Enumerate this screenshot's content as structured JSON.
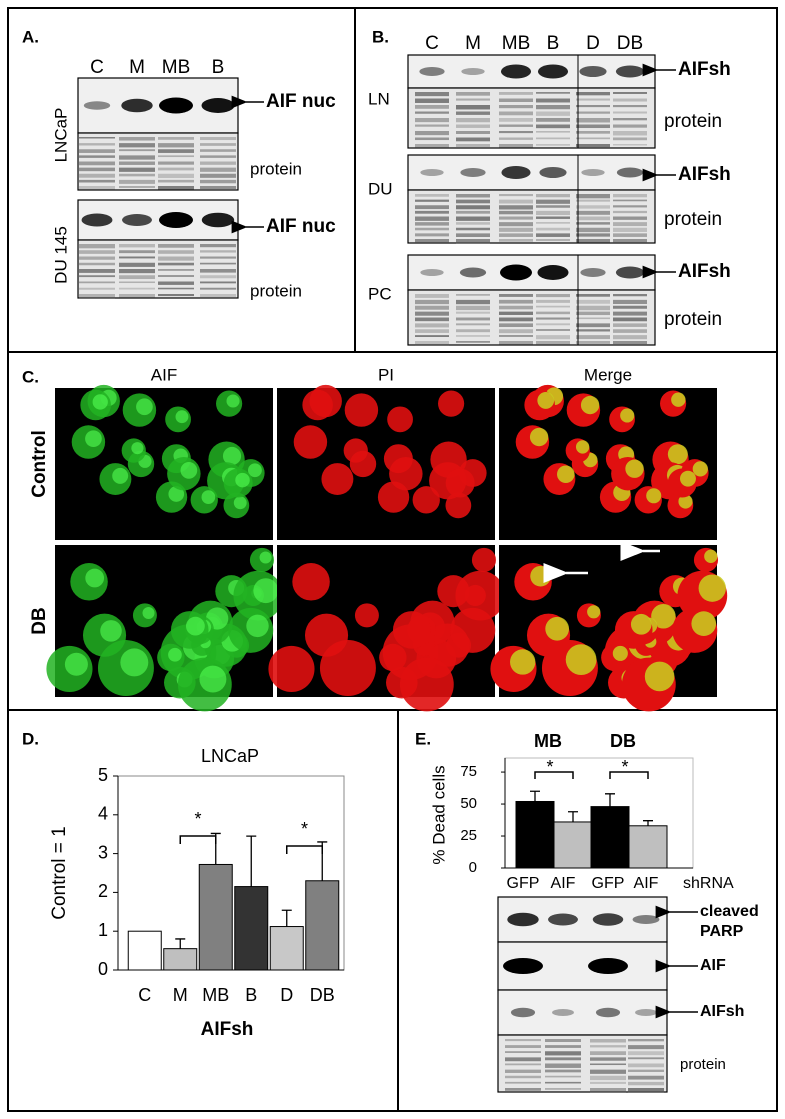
{
  "panels": {
    "a": {
      "label": "A.",
      "lanes": [
        "C",
        "M",
        "MB",
        "B"
      ],
      "cells": [
        "LNCaP",
        "DU 145"
      ],
      "bands": [
        "AIF nuc",
        "protein",
        "AIF nuc",
        "protein"
      ]
    },
    "b": {
      "label": "B.",
      "lanes": [
        "C",
        "M",
        "MB",
        "B",
        "D",
        "DB"
      ],
      "cells": [
        "LN",
        "DU",
        "PC"
      ],
      "bands": [
        "AIFsh",
        "protein",
        "AIFsh",
        "protein",
        "AIFsh",
        "protein"
      ]
    },
    "c": {
      "label": "C.",
      "columns": [
        "AIF",
        "PI",
        "Merge"
      ],
      "rows": [
        "Control",
        "DB"
      ]
    },
    "d": {
      "label": "D."
    },
    "e": {
      "label": "E.",
      "lanes": [
        "GFP",
        "AIF",
        "GFP",
        "AIF",
        "shRNA"
      ],
      "bands": [
        "cleaved",
        "PARP",
        "AIF",
        "AIFsh",
        "protein"
      ]
    }
  },
  "chart_data": [
    {
      "type": "bar",
      "title": "LNCaP",
      "y_label": "Control = 1",
      "x_label": "AIFsh",
      "categories": [
        "C",
        "M",
        "MB",
        "B",
        "D",
        "DB"
      ],
      "values": [
        1,
        0.55,
        2.72,
        2.15,
        1.12,
        2.3
      ],
      "errors": [
        null,
        0.25,
        0.8,
        1.3,
        0.42,
        1.0
      ],
      "colors": [
        "#ffffff",
        "#bfbfbf",
        "#808080",
        "#333333",
        "#c8c8c8",
        "#808080"
      ],
      "ylim": [
        0,
        5
      ],
      "yticks": [
        0,
        1,
        2,
        3,
        4,
        5
      ],
      "annotations": [
        "*",
        "*"
      ]
    },
    {
      "type": "grouped_bar",
      "y_label": "% Dead cells",
      "groups": [
        "MB",
        "DB"
      ],
      "series": [
        {
          "color": "#000000",
          "values": [
            52,
            48
          ],
          "errors": [
            8,
            10
          ]
        },
        {
          "color": "#bfbfbf",
          "values": [
            36,
            33
          ],
          "errors": [
            8,
            4
          ]
        }
      ],
      "ylim": [
        0,
        86
      ],
      "yticks": [
        0,
        25,
        50,
        75
      ],
      "annotations": [
        "*",
        "*"
      ]
    }
  ]
}
